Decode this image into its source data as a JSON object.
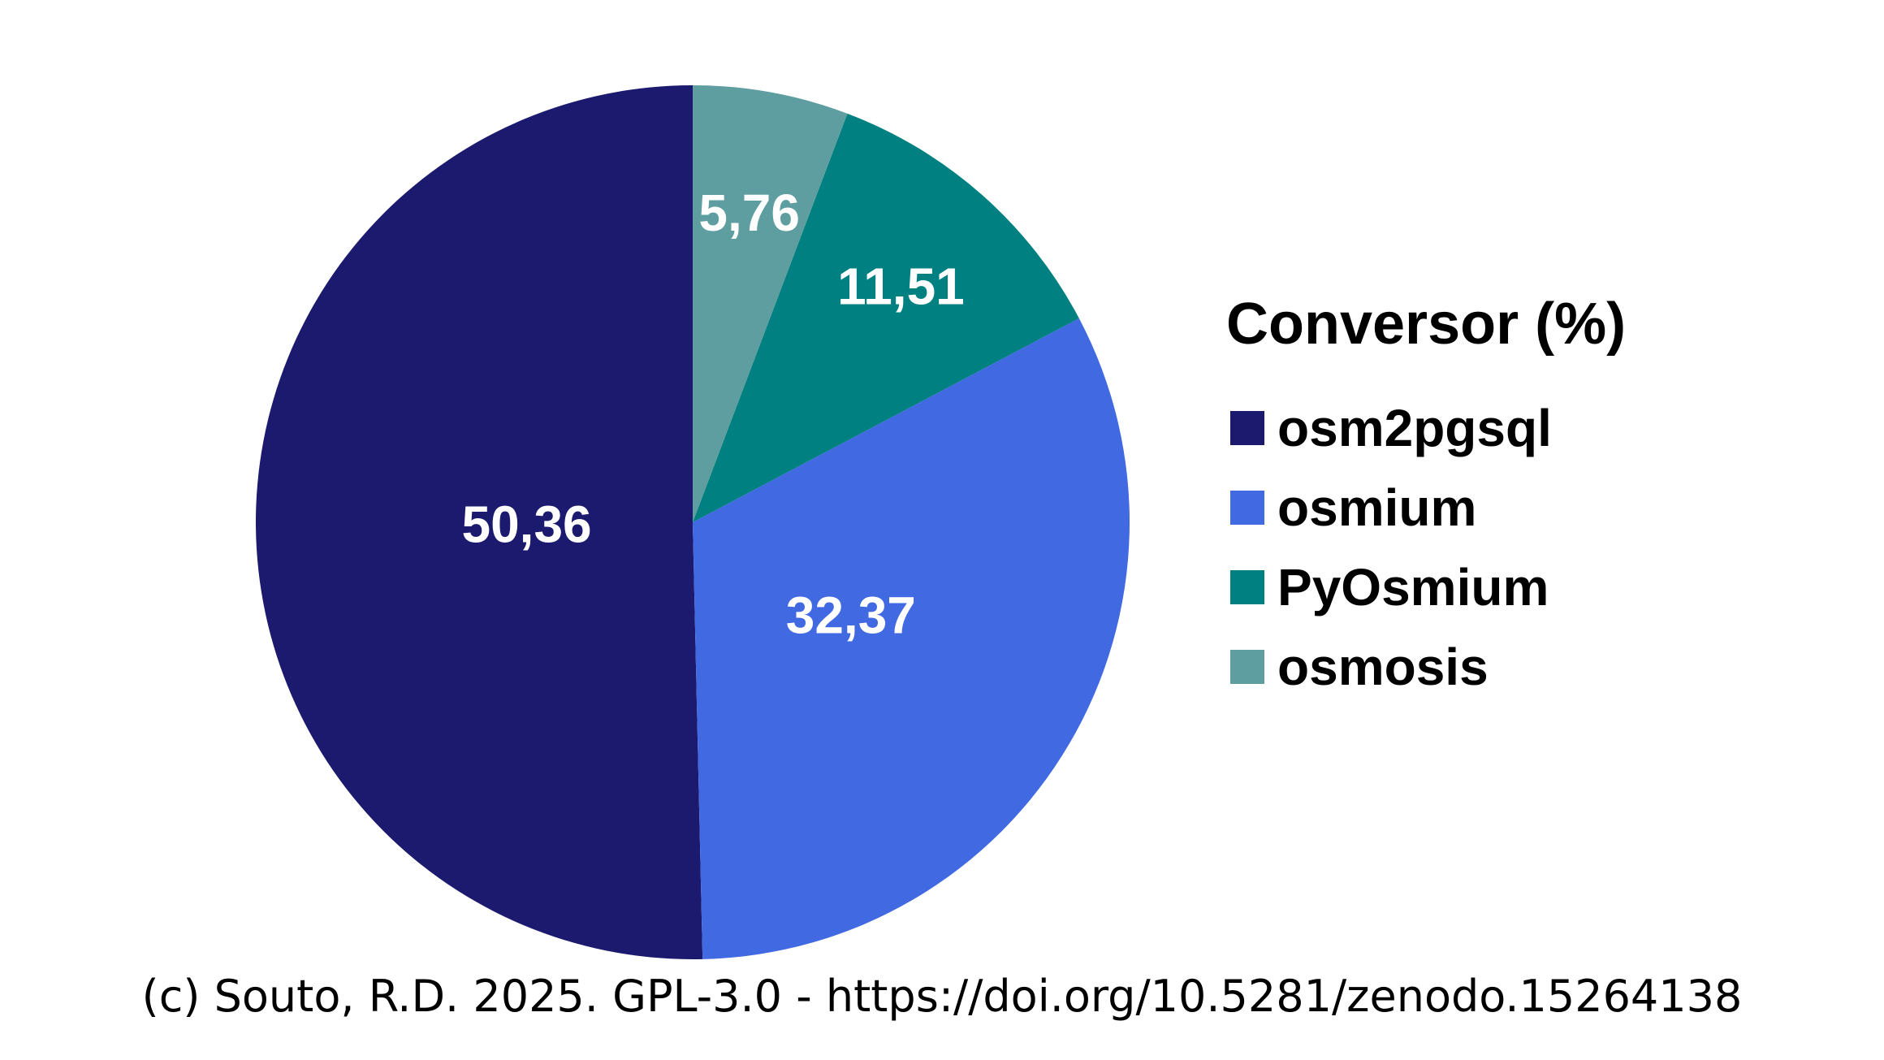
{
  "chart_data": {
    "type": "pie",
    "legend_title": "Conversor (%)",
    "legend_position": "right",
    "start": "12 o'clock",
    "direction": "counterclockwise",
    "slices": [
      {
        "label": "osm2pgsql",
        "value": 50.36,
        "display": "50,36",
        "color": "#1b1a6e"
      },
      {
        "label": "osmium",
        "value": 32.37,
        "display": "32,37",
        "color": "#4169e1"
      },
      {
        "label": "PyOsmium",
        "value": 11.51,
        "display": "11,51",
        "color": "#008080"
      },
      {
        "label": "osmosis",
        "value": 5.76,
        "display": "5,76",
        "color": "#5f9ea0"
      }
    ]
  },
  "credit": "(c) Souto, R.D. 2025. GPL-3.0 - https://doi.org/10.5281/zenodo.15264138"
}
